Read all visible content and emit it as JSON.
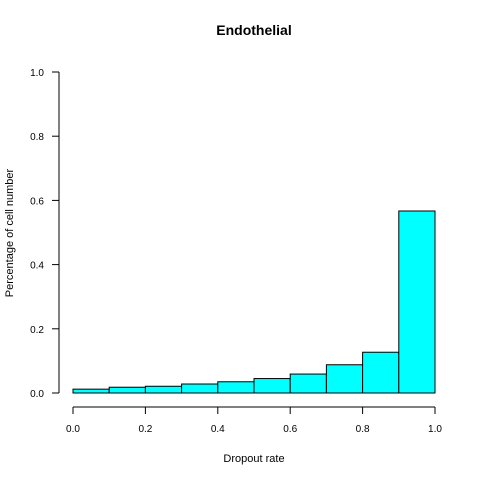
{
  "chart_data": {
    "type": "bar",
    "title": "Endothelial",
    "xlabel": "Dropout rate",
    "ylabel": "Percentage of cell number",
    "xlim": [
      0,
      1
    ],
    "ylim": [
      0,
      1
    ],
    "x_ticks": [
      "0.0",
      "0.2",
      "0.4",
      "0.6",
      "0.8",
      "1.0"
    ],
    "y_ticks": [
      "0.0",
      "0.2",
      "0.4",
      "0.6",
      "0.8",
      "1.0"
    ],
    "bin_edges": [
      0.0,
      0.1,
      0.2,
      0.3,
      0.4,
      0.5,
      0.6,
      0.7,
      0.8,
      0.9,
      1.0
    ],
    "values": [
      0.012,
      0.018,
      0.021,
      0.028,
      0.035,
      0.045,
      0.059,
      0.088,
      0.127,
      0.567
    ],
    "bar_color": "#00ffff",
    "border_color": "#000000",
    "grid": false,
    "legend": "none"
  }
}
